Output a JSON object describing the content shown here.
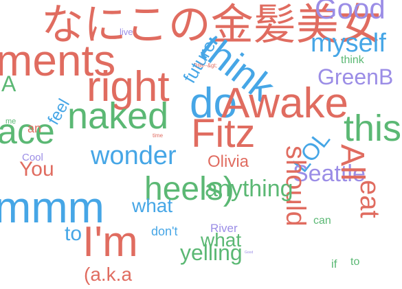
{
  "colors": {
    "red": "#e06c60",
    "blue": "#46a6e6",
    "green": "#5bb874",
    "purple": "#9b8de6"
  },
  "words": [
    {
      "text": "なにこの金髪美女",
      "color": "red"
    },
    {
      "text": "Good",
      "color": "purple"
    },
    {
      "text": "myself",
      "color": "blue"
    },
    {
      "text": "ments",
      "color": "red"
    },
    {
      "text": "future",
      "color": "blue"
    },
    {
      "text": "think",
      "color": "blue"
    },
    {
      "text": "think",
      "color": "green"
    },
    {
      "text": "GreenB",
      "color": "purple"
    },
    {
      "text": "right",
      "color": "red"
    },
    {
      "text": "do",
      "color": "blue"
    },
    {
      "text": "Awake",
      "color": "red"
    },
    {
      "text": "naked",
      "color": "green"
    },
    {
      "text": "feel",
      "color": "blue"
    },
    {
      "text": "this",
      "color": "green"
    },
    {
      "text": "ace",
      "color": "green"
    },
    {
      "text": "Fitz",
      "color": "red"
    },
    {
      "text": "wonder",
      "color": "blue"
    },
    {
      "text": "LOL",
      "color": "blue"
    },
    {
      "text": "Seattle",
      "color": "purple"
    },
    {
      "text": "You",
      "color": "red"
    },
    {
      "text": "Cool",
      "color": "purple"
    },
    {
      "text": "Olivia",
      "color": "red"
    },
    {
      "text": "should",
      "color": "red"
    },
    {
      "text": "All",
      "color": "red"
    },
    {
      "text": "heels)",
      "color": "green"
    },
    {
      "text": "anything",
      "color": "green"
    },
    {
      "text": "what",
      "color": "blue"
    },
    {
      "text": "mmm",
      "color": "blue"
    },
    {
      "text": "eat",
      "color": "red"
    },
    {
      "text": "I'm",
      "color": "red"
    },
    {
      "text": "to",
      "color": "blue"
    },
    {
      "text": "don't",
      "color": "blue"
    },
    {
      "text": "River",
      "color": "purple"
    },
    {
      "text": "what",
      "color": "green"
    },
    {
      "text": "can",
      "color": "green"
    },
    {
      "text": "yelling",
      "color": "green"
    },
    {
      "text": "if",
      "color": "green"
    },
    {
      "text": "to",
      "color": "green"
    },
    {
      "text": "(a.k.a",
      "color": "red"
    },
    {
      "text": "time",
      "color": "red"
    },
    {
      "text": "live",
      "color": "purple"
    },
    {
      "text": "me",
      "color": "green"
    },
    {
      "text": "an",
      "color": "red"
    },
    {
      "text": "\"His--&gt;",
      "color": "red"
    },
    {
      "text": "Good",
      "color": "purple"
    },
    {
      "text": "A",
      "color": "green"
    }
  ]
}
